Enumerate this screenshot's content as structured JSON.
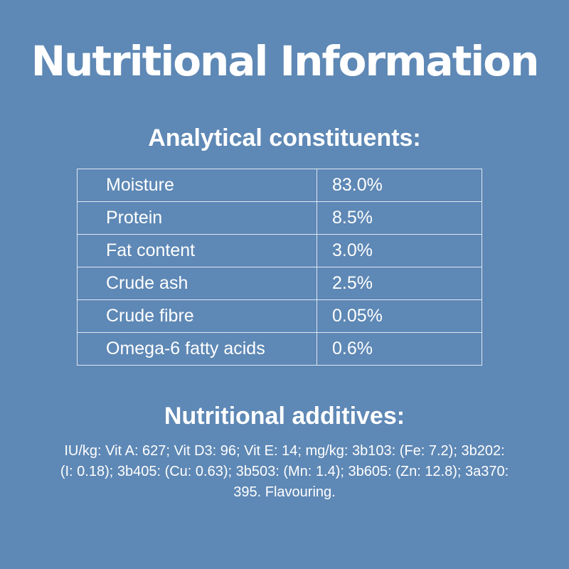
{
  "title": "Nutritional Information",
  "analytical": {
    "heading": "Analytical constituents:",
    "rows": [
      {
        "name": "Moisture",
        "value": "83.0%"
      },
      {
        "name": "Protein",
        "value": "8.5%"
      },
      {
        "name": "Fat content",
        "value": "3.0%"
      },
      {
        "name": "Crude ash",
        "value": "2.5%"
      },
      {
        "name": "Crude fibre",
        "value": "0.05%"
      },
      {
        "name": "Omega-6 fatty acids",
        "value": "0.6%"
      }
    ]
  },
  "additives": {
    "heading": "Nutritional additives:",
    "text": "IU/kg: Vit A: 627; Vit D3: 96; Vit E: 14; mg/kg: 3b103: (Fe: 7.2); 3b202: (I: 0.18); 3b405: (Cu: 0.63); 3b503: (Mn: 1.4); 3b605: (Zn: 12.8); 3a370: 395. Flavouring."
  },
  "colors": {
    "background": "#5e88b5",
    "text": "#ffffff",
    "table_border": "#dfe8f2"
  }
}
